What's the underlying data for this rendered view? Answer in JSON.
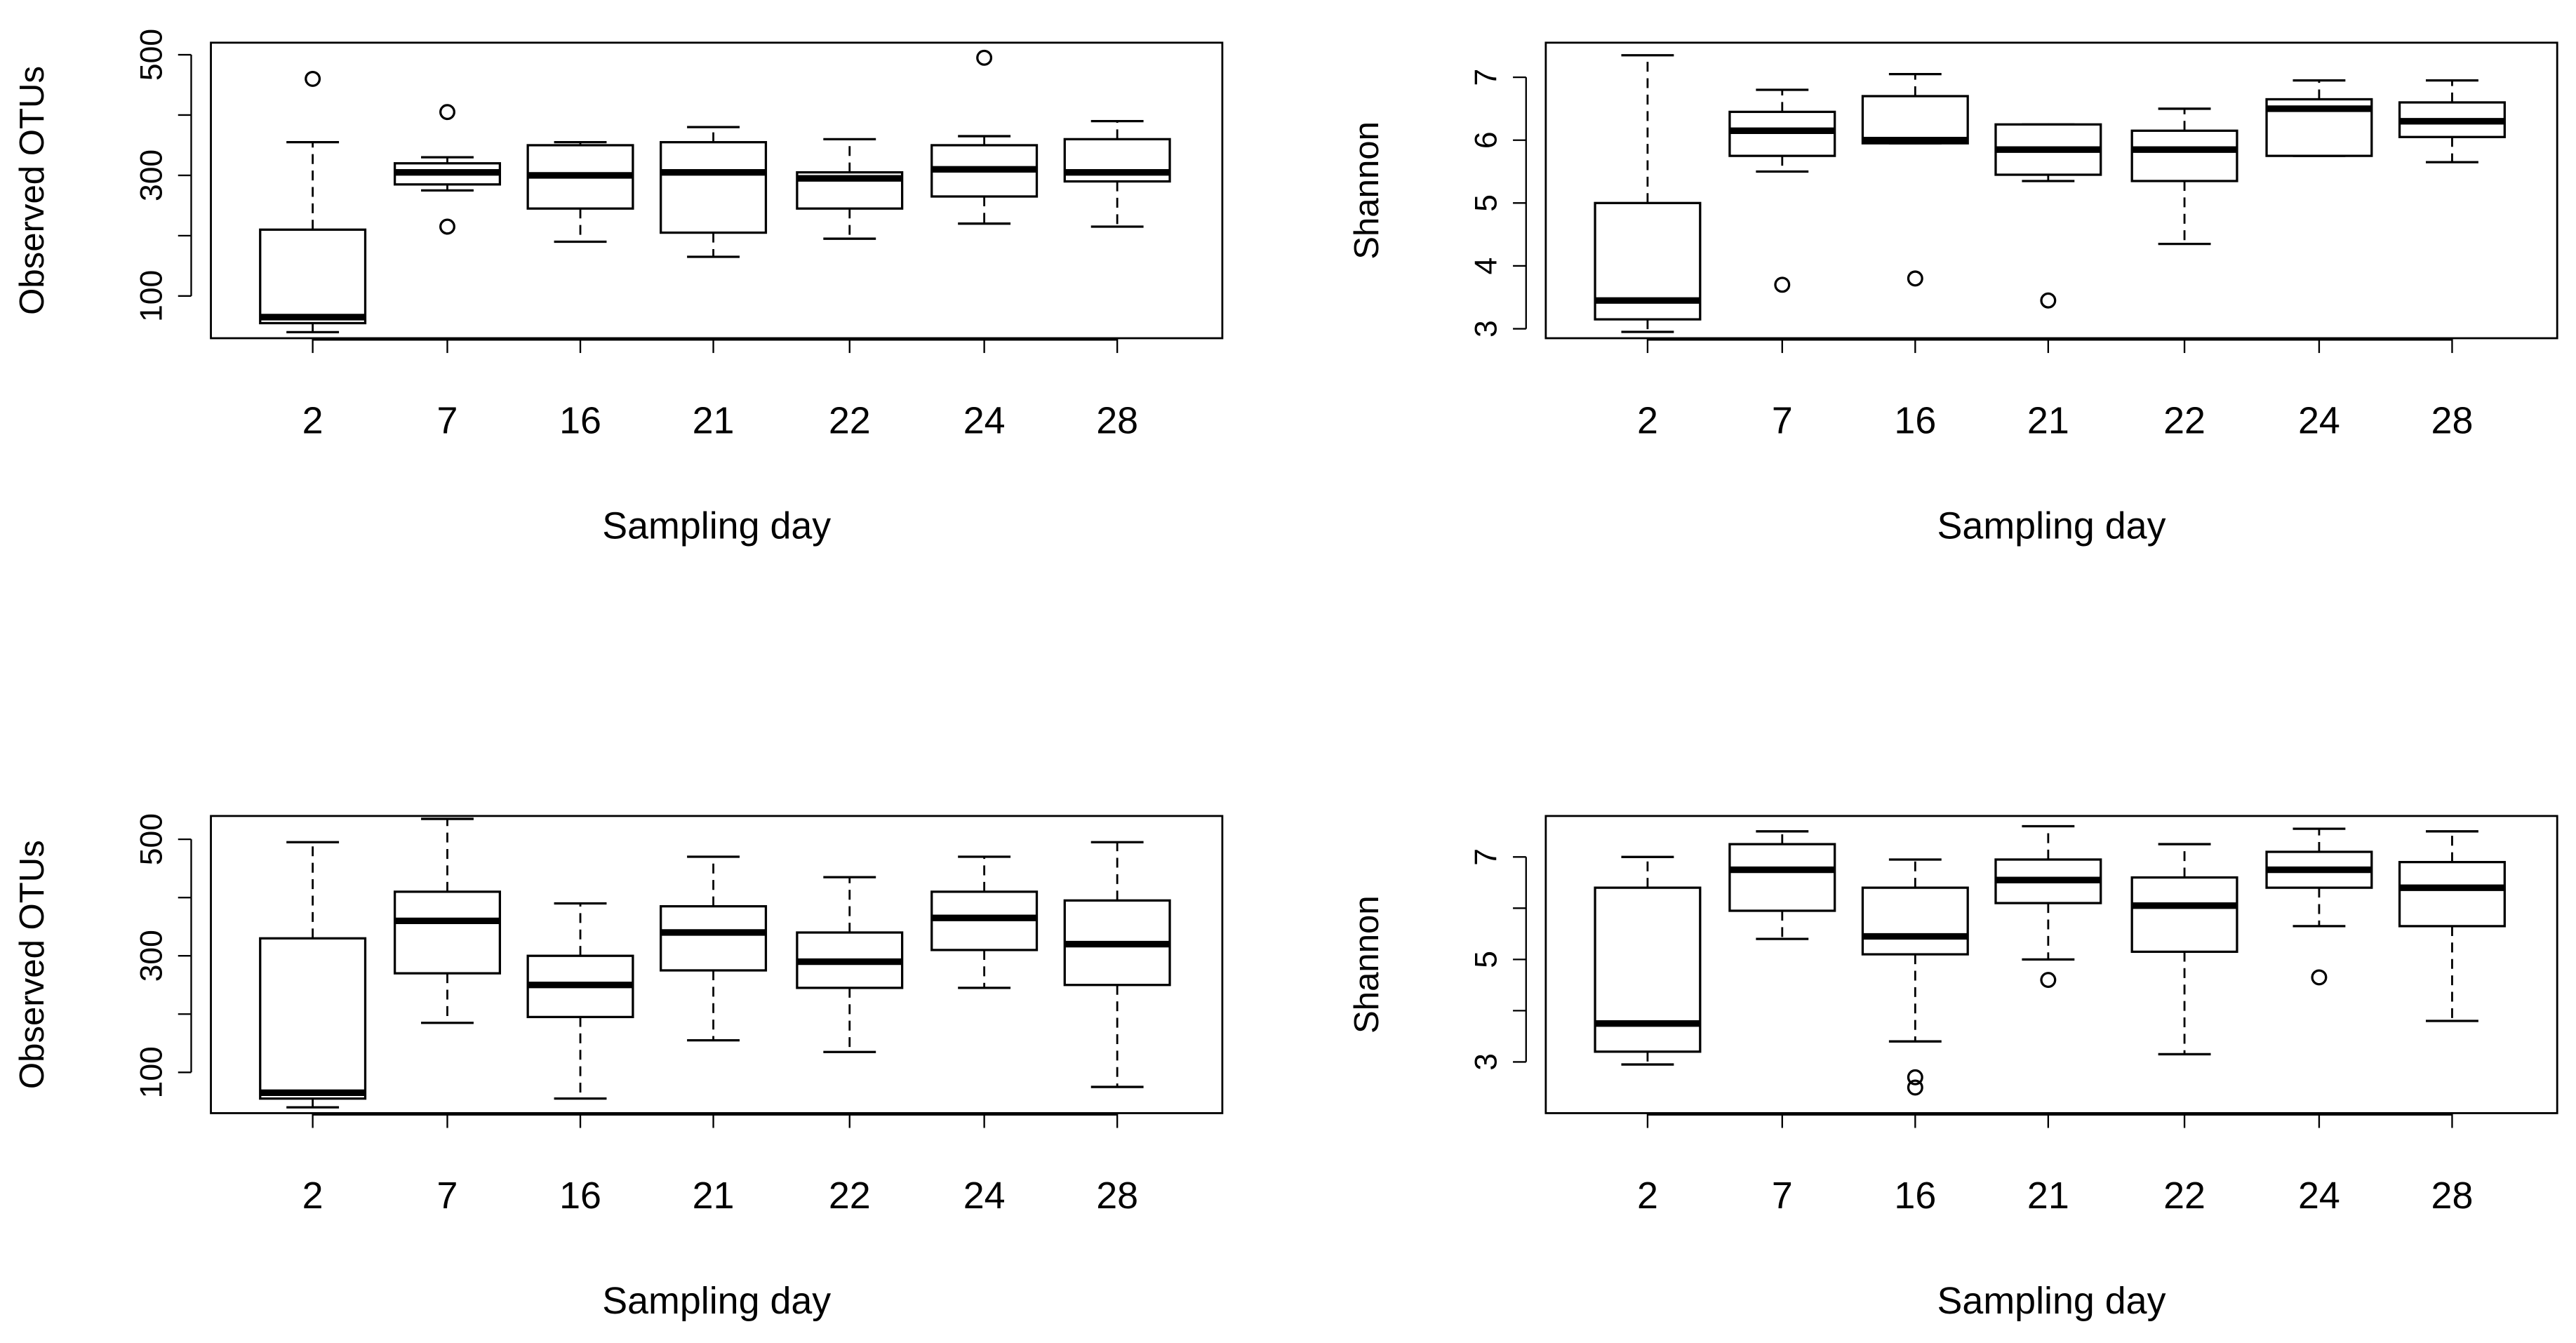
{
  "chart_data": [
    {
      "type": "box",
      "xlabel": "Sampling day",
      "ylabel": "Observed OTUs",
      "categories": [
        "2",
        "7",
        "16",
        "21",
        "22",
        "24",
        "28"
      ],
      "y_ticks": [
        100,
        300,
        500
      ],
      "y_minor_ticks": [
        200,
        400
      ],
      "ylim": [
        30,
        520
      ],
      "grid": false,
      "boxes": [
        {
          "whisker_low": 40,
          "q1": 55,
          "median": 65,
          "q3": 210,
          "whisker_high": 355,
          "outliers": [
            460
          ]
        },
        {
          "whisker_low": 275,
          "q1": 285,
          "median": 305,
          "q3": 320,
          "whisker_high": 330,
          "outliers": [
            405,
            215
          ]
        },
        {
          "whisker_low": 190,
          "q1": 245,
          "median": 300,
          "q3": 350,
          "whisker_high": 355,
          "outliers": []
        },
        {
          "whisker_low": 165,
          "q1": 205,
          "median": 305,
          "q3": 355,
          "whisker_high": 380,
          "outliers": []
        },
        {
          "whisker_low": 195,
          "q1": 245,
          "median": 295,
          "q3": 305,
          "whisker_high": 360,
          "outliers": []
        },
        {
          "whisker_low": 220,
          "q1": 265,
          "median": 310,
          "q3": 350,
          "whisker_high": 365,
          "outliers": [
            495
          ]
        },
        {
          "whisker_low": 215,
          "q1": 290,
          "median": 305,
          "q3": 360,
          "whisker_high": 390,
          "outliers": []
        }
      ]
    },
    {
      "type": "box",
      "xlabel": "Sampling day",
      "ylabel": "Shannon",
      "categories": [
        "2",
        "7",
        "16",
        "21",
        "22",
        "24",
        "28"
      ],
      "y_ticks": [
        3,
        4,
        5,
        6,
        7
      ],
      "y_minor_ticks": [],
      "ylim": [
        2.85,
        7.55
      ],
      "grid": false,
      "boxes": [
        {
          "whisker_low": 2.95,
          "q1": 3.15,
          "median": 3.45,
          "q3": 5.0,
          "whisker_high": 7.35,
          "outliers": []
        },
        {
          "whisker_low": 5.5,
          "q1": 5.75,
          "median": 6.15,
          "q3": 6.45,
          "whisker_high": 6.8,
          "outliers": [
            3.7
          ]
        },
        {
          "whisker_low": 5.95,
          "q1": 5.95,
          "median": 6.0,
          "q3": 6.7,
          "whisker_high": 7.05,
          "outliers": [
            3.8
          ]
        },
        {
          "whisker_low": 5.35,
          "q1": 5.45,
          "median": 5.85,
          "q3": 6.25,
          "whisker_high": 6.25,
          "outliers": [
            3.45
          ]
        },
        {
          "whisker_low": 4.35,
          "q1": 5.35,
          "median": 5.85,
          "q3": 6.15,
          "whisker_high": 6.5,
          "outliers": []
        },
        {
          "whisker_low": 5.75,
          "q1": 5.75,
          "median": 6.5,
          "q3": 6.65,
          "whisker_high": 6.95,
          "outliers": []
        },
        {
          "whisker_low": 5.65,
          "q1": 6.05,
          "median": 6.3,
          "q3": 6.6,
          "whisker_high": 6.95,
          "outliers": []
        }
      ]
    },
    {
      "type": "box",
      "xlabel": "Sampling day",
      "ylabel": "Observed OTUs",
      "categories": [
        "2",
        "7",
        "16",
        "21",
        "22",
        "24",
        "28"
      ],
      "y_ticks": [
        100,
        300,
        500
      ],
      "y_minor_ticks": [
        200,
        400
      ],
      "ylim": [
        30,
        540
      ],
      "grid": false,
      "boxes": [
        {
          "whisker_low": 40,
          "q1": 55,
          "median": 65,
          "q3": 330,
          "whisker_high": 495,
          "outliers": []
        },
        {
          "whisker_low": 185,
          "q1": 270,
          "median": 360,
          "q3": 410,
          "whisker_high": 535,
          "outliers": []
        },
        {
          "whisker_low": 55,
          "q1": 195,
          "median": 250,
          "q3": 300,
          "whisker_high": 390,
          "outliers": []
        },
        {
          "whisker_low": 155,
          "q1": 275,
          "median": 340,
          "q3": 385,
          "whisker_high": 470,
          "outliers": []
        },
        {
          "whisker_low": 135,
          "q1": 245,
          "median": 290,
          "q3": 340,
          "whisker_high": 435,
          "outliers": []
        },
        {
          "whisker_low": 245,
          "q1": 310,
          "median": 365,
          "q3": 410,
          "whisker_high": 470,
          "outliers": []
        },
        {
          "whisker_low": 75,
          "q1": 250,
          "median": 320,
          "q3": 395,
          "whisker_high": 495,
          "outliers": []
        }
      ]
    },
    {
      "type": "box",
      "xlabel": "Sampling day",
      "ylabel": "Shannon",
      "categories": [
        "2",
        "7",
        "16",
        "21",
        "22",
        "24",
        "28"
      ],
      "y_ticks": [
        3,
        5,
        7
      ],
      "y_minor_ticks": [
        4,
        6
      ],
      "ylim": [
        2.0,
        7.8
      ],
      "grid": false,
      "boxes": [
        {
          "whisker_low": 2.95,
          "q1": 3.2,
          "median": 3.75,
          "q3": 6.4,
          "whisker_high": 7.0,
          "outliers": []
        },
        {
          "whisker_low": 5.4,
          "q1": 5.95,
          "median": 6.75,
          "q3": 7.25,
          "whisker_high": 7.5,
          "outliers": []
        },
        {
          "whisker_low": 3.4,
          "q1": 5.1,
          "median": 5.45,
          "q3": 6.4,
          "whisker_high": 6.95,
          "outliers": [
            2.7,
            2.5
          ]
        },
        {
          "whisker_low": 5.0,
          "q1": 6.1,
          "median": 6.55,
          "q3": 6.95,
          "whisker_high": 7.6,
          "outliers": [
            4.6
          ]
        },
        {
          "whisker_low": 3.15,
          "q1": 5.15,
          "median": 6.05,
          "q3": 6.6,
          "whisker_high": 7.25,
          "outliers": []
        },
        {
          "whisker_low": 5.65,
          "q1": 6.4,
          "median": 6.75,
          "q3": 7.1,
          "whisker_high": 7.55,
          "outliers": [
            4.65
          ]
        },
        {
          "whisker_low": 3.8,
          "q1": 5.65,
          "median": 6.4,
          "q3": 6.9,
          "whisker_high": 7.5,
          "outliers": []
        }
      ]
    }
  ]
}
